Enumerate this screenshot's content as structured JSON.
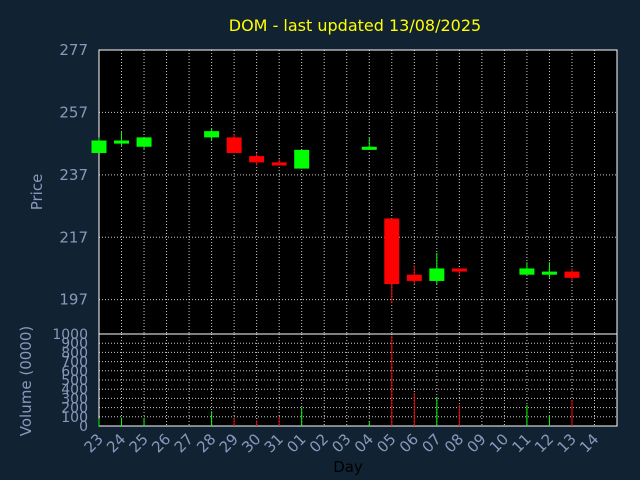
{
  "chart_data": {
    "type": "candlestick",
    "title": "DOM - last updated 13/08/2025",
    "ylabel": "Price",
    "xlabel": "Day",
    "ylim": [
      186,
      277
    ],
    "yticks": [
      197,
      217,
      237,
      257,
      277
    ],
    "volume": {
      "ylabel": "Volume (0000)",
      "ylim": [
        0,
        1000
      ],
      "yticks": [
        0,
        100,
        200,
        300,
        400,
        500,
        600,
        700,
        800,
        900,
        1000
      ]
    },
    "days": [
      "23",
      "24",
      "25",
      "26",
      "27",
      "28",
      "29",
      "30",
      "31",
      "01",
      "02",
      "03",
      "04",
      "05",
      "06",
      "07",
      "08",
      "09",
      "10",
      "11",
      "12",
      "13",
      "14"
    ],
    "candles": [
      {
        "day": "23",
        "open": 244,
        "high": 249,
        "low": 244,
        "close": 248,
        "volume": 80
      },
      {
        "day": "24",
        "open": 247,
        "high": 251,
        "low": 246,
        "close": 248,
        "volume": 90
      },
      {
        "day": "25",
        "open": 246,
        "high": 249,
        "low": 245,
        "close": 249,
        "volume": 85
      },
      {
        "day": "28",
        "open": 249,
        "high": 252,
        "low": 248,
        "close": 251,
        "volume": 160
      },
      {
        "day": "29",
        "open": 249,
        "high": 250,
        "low": 244,
        "close": 244,
        "volume": 85
      },
      {
        "day": "30",
        "open": 243,
        "high": 244,
        "low": 240,
        "close": 241,
        "volume": 60
      },
      {
        "day": "31",
        "open": 241,
        "high": 242,
        "low": 240,
        "close": 240,
        "volume": 95
      },
      {
        "day": "01",
        "open": 239,
        "high": 245,
        "low": 239,
        "close": 245,
        "volume": 200
      },
      {
        "day": "04",
        "open": 245,
        "high": 249,
        "low": 245,
        "close": 246,
        "volume": 55
      },
      {
        "day": "05",
        "open": 223,
        "high": 223,
        "low": 196,
        "close": 202,
        "volume": 980
      },
      {
        "day": "06",
        "open": 205,
        "high": 208,
        "low": 202,
        "close": 203,
        "volume": 360
      },
      {
        "day": "07",
        "open": 203,
        "high": 212,
        "low": 202,
        "close": 207,
        "volume": 310
      },
      {
        "day": "08",
        "open": 207,
        "high": 207,
        "low": 205,
        "close": 206,
        "volume": 230
      },
      {
        "day": "11",
        "open": 205,
        "high": 209,
        "low": 205,
        "close": 207,
        "volume": 230
      },
      {
        "day": "12",
        "open": 205,
        "high": 209,
        "low": 204,
        "close": 206,
        "volume": 120
      },
      {
        "day": "13",
        "open": 206,
        "high": 207,
        "low": 203,
        "close": 204,
        "volume": 280
      }
    ]
  },
  "colors": {
    "background": "#112233",
    "title": "#ffff00",
    "axis_text": "#8899bb",
    "up": "#00ff00",
    "down": "#ff0000"
  }
}
